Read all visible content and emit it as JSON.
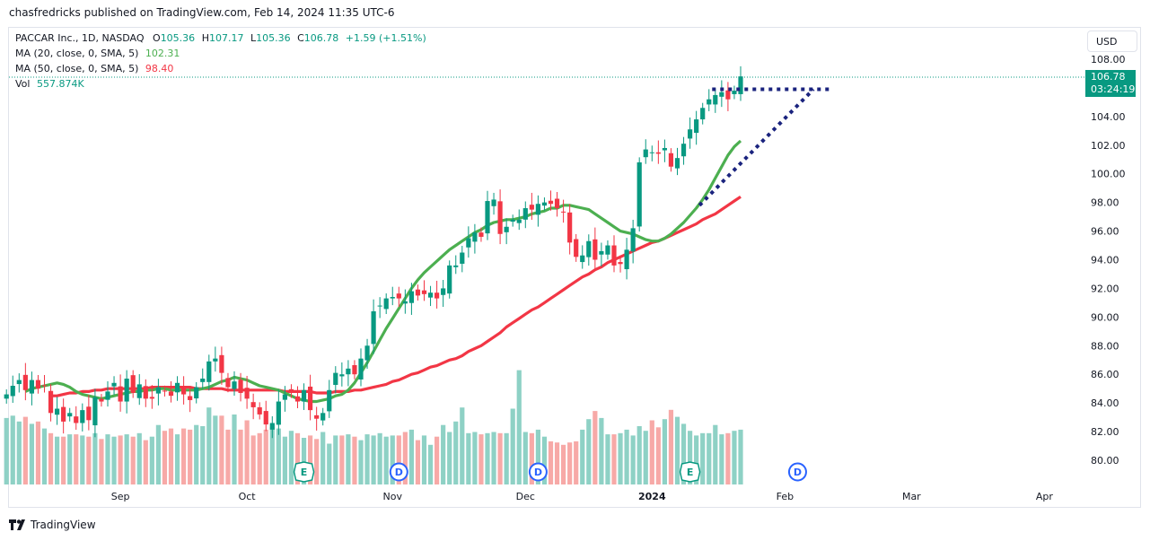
{
  "publisher": "chasfredricks published on TradingView.com, Feb 14, 2024 11:35 UTC-6",
  "currency": "USD",
  "footer": {
    "brand": "TradingView"
  },
  "legend": {
    "symbol": "PACCAR Inc., 1D, NASDAQ",
    "o_label": "O",
    "o": "105.36",
    "h_label": "H",
    "h": "107.17",
    "l_label": "L",
    "l": "105.36",
    "c_label": "C",
    "c": "106.78",
    "change": "+1.59 (+1.51%)",
    "ma20_name": "MA (20, close, 0, SMA, 5)",
    "ma20_value": "102.31",
    "ma50_name": "MA (50, close, 0, SMA, 5)",
    "ma50_value": "98.40",
    "vol_name": "Vol",
    "vol_value": "557.874K"
  },
  "price_tag": {
    "price": "106.78",
    "countdown": "03:24:19"
  },
  "colors": {
    "up": "#089981",
    "down": "#f23645",
    "ma20": "#4caf50",
    "ma50": "#f23645",
    "trendline": "#1a237e",
    "event_blue": "#2962ff"
  },
  "chart_data": {
    "type": "candlestick",
    "y_ticks": [
      "80.00",
      "82.00",
      "84.00",
      "86.00",
      "88.00",
      "90.00",
      "92.00",
      "94.00",
      "96.00",
      "98.00",
      "100.00",
      "102.00",
      "104.00",
      "106.00",
      "108.00"
    ],
    "ylim": [
      79,
      108.8
    ],
    "x_ticks": [
      {
        "label": "Sep",
        "t": 18,
        "bold": false
      },
      {
        "label": "Oct",
        "t": 38,
        "bold": false
      },
      {
        "label": "Nov",
        "t": 61,
        "bold": false
      },
      {
        "label": "Dec",
        "t": 82,
        "bold": false
      },
      {
        "label": "2024",
        "t": 102,
        "bold": true
      },
      {
        "label": "Feb",
        "t": 123,
        "bold": false
      },
      {
        "label": "Mar",
        "t": 143,
        "bold": false
      },
      {
        "label": "Apr",
        "t": 164,
        "bold": false
      }
    ],
    "closes": [
      84.6,
      85.2,
      85.6,
      84.9,
      85.6,
      85.0,
      85.2,
      83.3,
      83.6,
      82.7,
      83.3,
      82.6,
      83.5,
      82.8,
      84.4,
      84.1,
      84.8,
      85.4,
      84.1,
      85.7,
      84.7,
      85.3,
      84.3,
      84.3,
      85.1,
      84.8,
      84.5,
      85.4,
      84.6,
      84.2,
      85.1,
      85.7,
      86.9,
      87.1,
      86.1,
      85.1,
      85.5,
      84.7,
      84.3,
      83.7,
      83.2,
      82.5,
      82.6,
      84.1,
      84.6,
      84.7,
      84.1,
      84.9,
      83.5,
      82.9,
      83.3,
      84.9,
      86.1,
      86.0,
      86.4,
      86.0,
      87.1,
      88.0,
      90.4,
      90.8,
      91.3,
      91.4,
      91.3,
      91.1,
      91.8,
      91.5,
      91.6,
      91.7,
      91.3,
      92.0,
      93.6,
      93.6,
      94.5,
      95.5,
      95.9,
      95.6,
      98.1,
      98.2,
      95.8,
      96.3,
      96.8,
      96.8,
      97.6,
      97.5,
      97.9,
      98.0,
      97.9,
      97.6,
      97.3,
      95.2,
      94.2,
      94.3,
      95.3,
      94.0,
      94.6,
      95.0,
      93.6,
      93.7,
      94.7,
      96.2,
      100.8,
      101.7,
      101.5,
      101.4,
      101.8,
      100.5,
      101.1,
      102.1,
      103.1,
      103.8,
      104.6,
      105.2,
      105.5,
      105.7,
      105.2,
      105.8,
      106.8
    ],
    "volumes": [
      57,
      59,
      54,
      58,
      52,
      54,
      48,
      44,
      41,
      41,
      43,
      43,
      42,
      41,
      44,
      39,
      43,
      41,
      42,
      43,
      41,
      44,
      38,
      41,
      51,
      46,
      48,
      43,
      48,
      47,
      51,
      50,
      66,
      59,
      59,
      47,
      60,
      47,
      55,
      42,
      44,
      47,
      49,
      48,
      41,
      46,
      44,
      40,
      42,
      39,
      45,
      35,
      42,
      42,
      43,
      41,
      38,
      43,
      42,
      44,
      41,
      42,
      42,
      45,
      47,
      38,
      42,
      34,
      41,
      51,
      45,
      54,
      66,
      44,
      45,
      43,
      44,
      45,
      44,
      44,
      65,
      98,
      45,
      44,
      47,
      41,
      37,
      36,
      34,
      36,
      37,
      47,
      56,
      63,
      57,
      43,
      43,
      44,
      47,
      42,
      50,
      46,
      55,
      49,
      56,
      64,
      58,
      52,
      46,
      42,
      44,
      44,
      51,
      43,
      44,
      46,
      47
    ],
    "ma20": [
      84.8,
      85.0,
      85.1,
      85.2,
      85.3,
      85.4,
      85.3,
      85.1,
      84.8,
      84.6,
      84.5,
      84.4,
      84.3,
      84.4,
      84.5,
      84.6,
      84.7,
      84.8,
      84.8,
      84.9,
      84.9,
      85.0,
      85.0,
      84.9,
      84.9,
      84.9,
      84.9,
      84.9,
      85.0,
      85.1,
      85.3,
      85.5,
      85.6,
      85.8,
      85.7,
      85.6,
      85.4,
      85.2,
      85.1,
      85.0,
      84.9,
      84.7,
      84.5,
      84.3,
      84.2,
      84.1,
      84.1,
      84.2,
      84.3,
      84.5,
      84.6,
      84.9,
      85.4,
      86.1,
      86.8,
      87.6,
      88.4,
      89.2,
      89.9,
      90.6,
      91.3,
      92.0,
      92.6,
      93.1,
      93.5,
      93.9,
      94.3,
      94.7,
      95.0,
      95.3,
      95.6,
      95.9,
      96.1,
      96.4,
      96.6,
      96.7,
      96.8,
      96.8,
      96.9,
      97.0,
      97.2,
      97.3,
      97.4,
      97.6,
      97.6,
      97.8,
      97.8,
      97.7,
      97.6,
      97.5,
      97.2,
      96.9,
      96.6,
      96.3,
      96.0,
      95.9,
      95.8,
      95.6,
      95.4,
      95.3,
      95.3,
      95.5,
      95.8,
      96.2,
      96.6,
      97.1,
      97.6,
      98.2,
      98.9,
      99.7,
      100.5,
      101.3,
      101.9,
      102.3
    ],
    "ma50": [
      84.5,
      84.5,
      84.6,
      84.7,
      84.7,
      84.8,
      84.8,
      84.9,
      84.9,
      85.0,
      85.0,
      85.0,
      85.0,
      85.0,
      85.0,
      85.0,
      85.1,
      85.1,
      85.1,
      85.1,
      85.1,
      85.1,
      85.1,
      85.0,
      85.0,
      85.0,
      85.0,
      85.0,
      84.9,
      84.9,
      84.9,
      84.9,
      84.9,
      84.9,
      84.9,
      84.9,
      84.9,
      84.8,
      84.8,
      84.8,
      84.8,
      84.8,
      84.7,
      84.7,
      84.7,
      84.8,
      84.8,
      84.8,
      84.9,
      84.9,
      85.0,
      85.1,
      85.2,
      85.3,
      85.5,
      85.6,
      85.8,
      86.0,
      86.1,
      86.3,
      86.5,
      86.6,
      86.8,
      87.0,
      87.1,
      87.3,
      87.6,
      87.8,
      88.0,
      88.3,
      88.6,
      88.9,
      89.3,
      89.6,
      89.9,
      90.2,
      90.5,
      90.7,
      91.0,
      91.3,
      91.6,
      91.9,
      92.2,
      92.5,
      92.8,
      93.0,
      93.3,
      93.5,
      93.8,
      94.0,
      94.2,
      94.4,
      94.6,
      94.8,
      95.0,
      95.2,
      95.3,
      95.5,
      95.7,
      95.9,
      96.1,
      96.3,
      96.5,
      96.8,
      97.0,
      97.2,
      97.5,
      97.8,
      98.1,
      98.4
    ],
    "events": [
      {
        "label": "E",
        "t": 47,
        "color": "green"
      },
      {
        "label": "D",
        "t": 62,
        "color": "blue"
      },
      {
        "label": "D",
        "t": 84,
        "color": "blue"
      },
      {
        "label": "E",
        "t": 108,
        "color": "green"
      },
      {
        "label": "D",
        "t": 125,
        "color": "blue"
      }
    ],
    "trendlines": [
      {
        "from": [
          111.5,
          105.9
        ],
        "to": [
          130.5,
          105.9
        ]
      },
      {
        "from": [
          109.5,
          97.8
        ],
        "to": [
          127.5,
          105.9
        ]
      }
    ],
    "grid": false
  }
}
